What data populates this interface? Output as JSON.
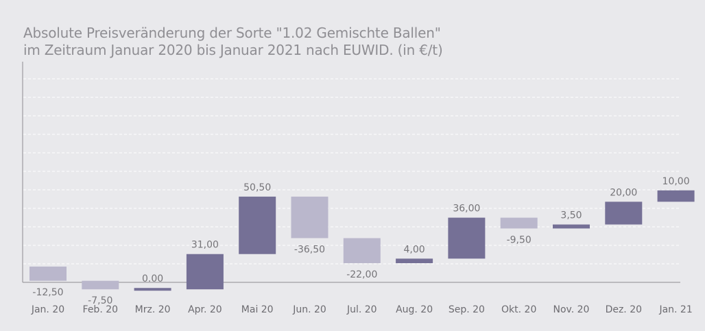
{
  "chart_data": {
    "type": "waterfall",
    "title_line1": "Absolute Preisveränderung der Sorte \"1.02 Gemischte Ballen\"",
    "title_line2": "im Zeitraum Januar 2020 bis Januar 2021 nach EUWID. (in €/t)",
    "categories": [
      "Jan. 20",
      "Feb. 20",
      "Mrz. 20",
      "Apr. 20",
      "Mai 20",
      "Jun. 20",
      "Jul. 20",
      "Aug. 20",
      "Sep. 20",
      "Okt. 20",
      "Nov. 20",
      "Dez. 20",
      "Jan. 21"
    ],
    "values": [
      -12.5,
      -7.5,
      0,
      31,
      50.5,
      -36.5,
      -22,
      4,
      36,
      -9.5,
      3.5,
      20,
      10
    ],
    "labels": [
      "-12,50",
      "-7,50",
      "0.00",
      "31,00",
      "50,50",
      "-36,50",
      "-22,00",
      "4,00",
      "36,00",
      "-9,50",
      "3,50",
      "20,00",
      "10,00"
    ],
    "xlabel": "",
    "ylabel": "",
    "grid": true,
    "colors": {
      "increase": "#757096",
      "decrease": "#bab7cc",
      "grid": "#ffffff",
      "axis": "#8d8c90",
      "background": "#e9e9ec"
    }
  }
}
